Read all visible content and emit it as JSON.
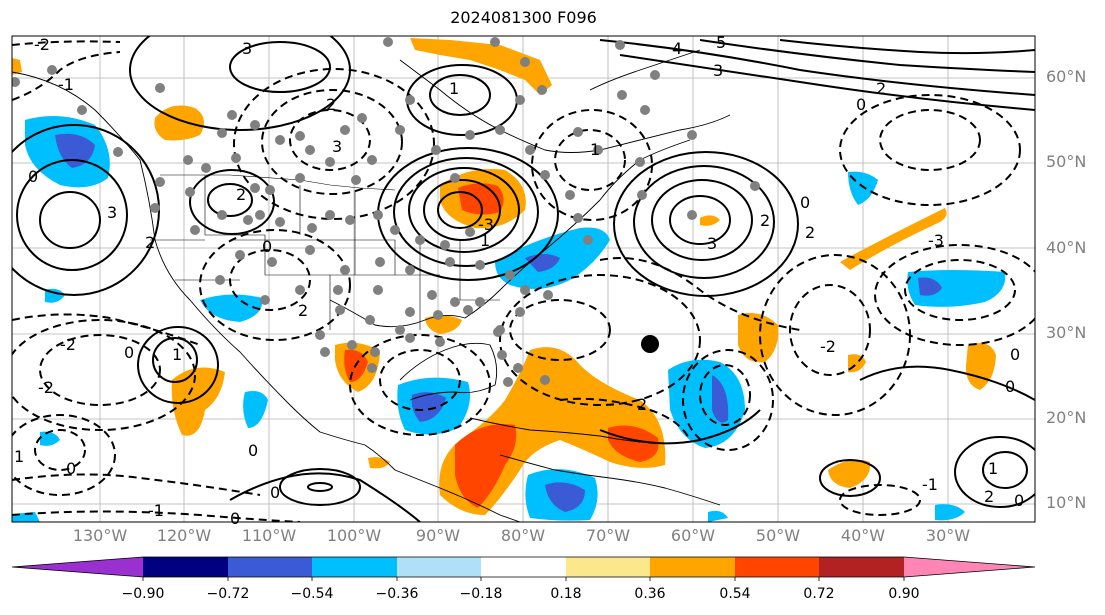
{
  "title": "2024081300 F096",
  "lat_labels": [
    "60°N",
    "50°N",
    "40°N",
    "30°N",
    "20°N",
    "10°N"
  ],
  "lon_labels": [
    "130°W",
    "120°W",
    "110°W",
    "100°W",
    "90°W",
    "80°W",
    "70°W",
    "60°W",
    "50°W",
    "40°W",
    "30°W"
  ],
  "colorbar": {
    "colors": [
      "#9b30d0",
      "#000080",
      "#3b5bd6",
      "#00bfff",
      "#b0e0f8",
      "#ffffff",
      "#fce88c",
      "#ffa500",
      "#ff4500",
      "#b22222",
      "#ff85b5"
    ],
    "tick_labels": [
      "−0.90",
      "−0.72",
      "−0.54",
      "−0.36",
      "−0.18",
      "0.18",
      "0.36",
      "0.54",
      "0.72",
      "0.90"
    ]
  },
  "contour_labels": [
    {
      "text": "1"
    },
    {
      "text": "3"
    },
    {
      "text": "4"
    },
    {
      "text": "5"
    },
    {
      "text": "3"
    },
    {
      "text": "2"
    },
    {
      "text": "0"
    },
    {
      "text": "3"
    },
    {
      "text": "2"
    },
    {
      "text": "2"
    },
    {
      "text": "3"
    },
    {
      "text": "1"
    },
    {
      "text": "2"
    },
    {
      "text": "3"
    },
    {
      "text": "2"
    },
    {
      "text": "0"
    },
    {
      "text": "-3"
    },
    {
      "text": "1"
    },
    {
      "text": "-2"
    },
    {
      "text": "0"
    },
    {
      "text": "2"
    },
    {
      "text": "0"
    },
    {
      "text": "0"
    },
    {
      "text": "2"
    },
    {
      "text": "0"
    },
    {
      "text": "-2"
    },
    {
      "text": "0"
    },
    {
      "text": "2"
    },
    {
      "text": "1"
    },
    {
      "text": "0"
    },
    {
      "text": "-1"
    },
    {
      "text": "0"
    },
    {
      "text": "1"
    },
    {
      "text": "0"
    },
    {
      "text": "-2"
    },
    {
      "text": "0"
    },
    {
      "text": "-1"
    },
    {
      "text": "1"
    },
    {
      "text": "2"
    },
    {
      "text": "0"
    },
    {
      "text": "-1"
    },
    {
      "text": "-2"
    },
    {
      "text": "-3"
    }
  ]
}
